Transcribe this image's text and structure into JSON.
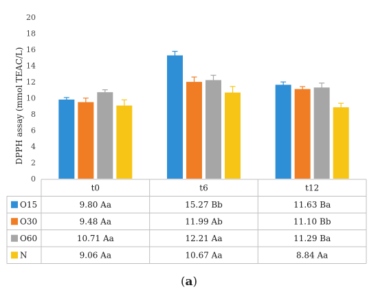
{
  "chart_data": {
    "type": "bar",
    "ylabel": "DPPH assay (mmol TEAC/L)",
    "ylim": [
      0,
      20
    ],
    "yticks": [
      0,
      2,
      4,
      6,
      8,
      10,
      12,
      14,
      16,
      18,
      20
    ],
    "categories": [
      "t0",
      "t6",
      "t12"
    ],
    "series": [
      {
        "name": "O15",
        "color": "#2e8fd6",
        "values": [
          9.8,
          15.27,
          11.63
        ],
        "errors": [
          0.25,
          0.5,
          0.35
        ],
        "labels": [
          "9.80  Aa",
          "15.27  Bb",
          "11.63  Ba"
        ]
      },
      {
        "name": "O30",
        "color": "#f07d24",
        "values": [
          9.48,
          11.99,
          11.1
        ],
        "errors": [
          0.5,
          0.6,
          0.3
        ],
        "labels": [
          "9.48  Aa",
          "11.99  Ab",
          "11.10  Bb"
        ]
      },
      {
        "name": "O60",
        "color": "#a6a6a6",
        "values": [
          10.71,
          12.21,
          11.29
        ],
        "errors": [
          0.3,
          0.6,
          0.55
        ],
        "labels": [
          "10.71  Aa",
          "12.21  Aa",
          "11.29  Ba"
        ]
      },
      {
        "name": "N",
        "color": "#f7c516",
        "values": [
          9.06,
          10.67,
          8.84
        ],
        "errors": [
          0.7,
          0.75,
          0.5
        ],
        "labels": [
          "9.06  Aa",
          "10.67  Aa",
          "8.84  Aa"
        ]
      }
    ],
    "grid": false,
    "legend": "data-table"
  },
  "caption": {
    "open": "(",
    "letter": "a",
    "close": ")"
  }
}
